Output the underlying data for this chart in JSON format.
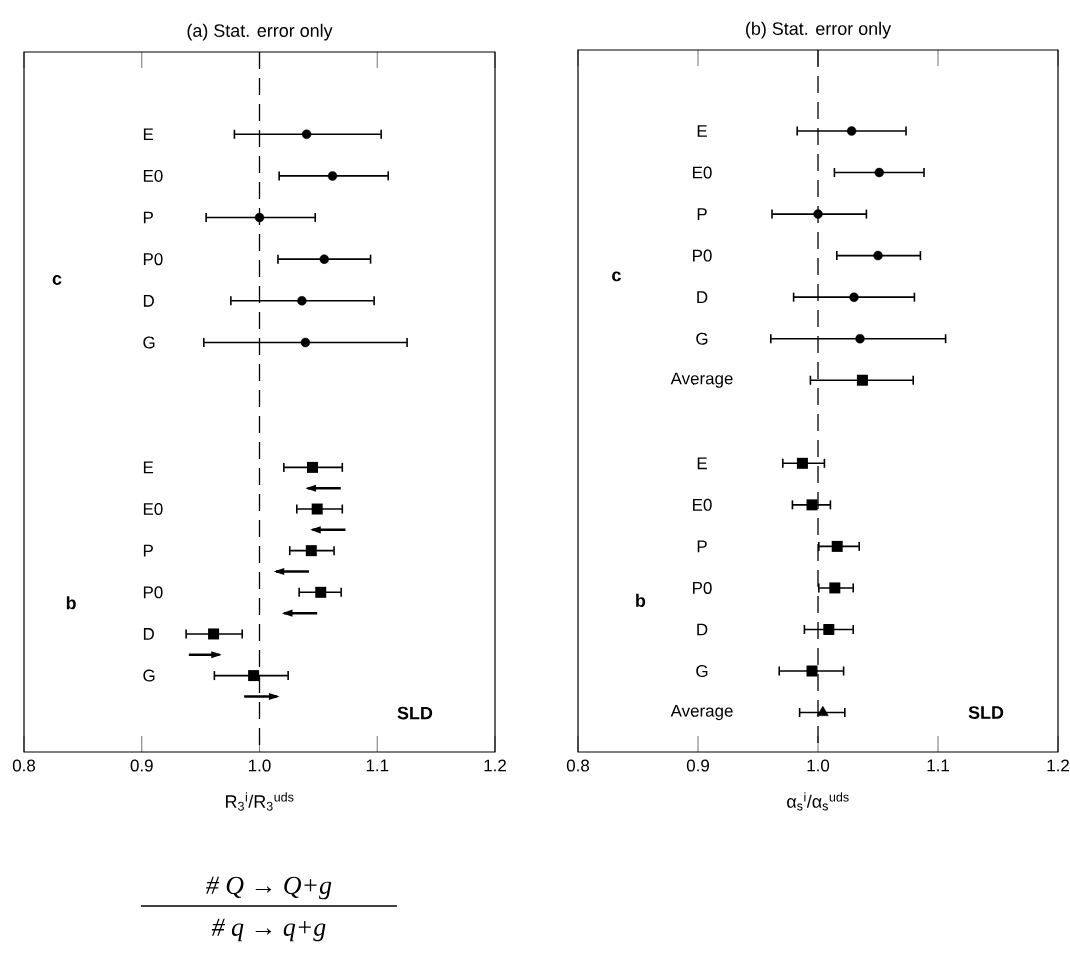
{
  "chart_data": [
    {
      "type": "scatter",
      "orientation": "horizontal",
      "title": "(a)   Stat. error only",
      "xlabel": "R$_{3}$$^{i}$/R$_{3}$$^{uds}$",
      "categories": [
        "E",
        null,
        "E0",
        null,
        "P",
        null,
        "P0",
        null,
        "D",
        null,
        "G",
        null,
        null,
        null,
        null,
        null,
        "E",
        null,
        "E0",
        null,
        "P",
        null,
        "P0",
        null,
        "D",
        null,
        "G",
        null
      ],
      "series": [
        {
          "marker": "circle",
          "color": "#000000",
          "values": [
            1.04,
            null,
            1.062,
            null,
            1.0,
            null,
            1.055,
            null,
            1.036,
            null,
            1.039,
            null,
            null,
            null,
            null,
            null,
            null,
            null,
            null,
            null,
            null,
            null,
            null,
            null,
            null,
            null,
            null,
            null
          ],
          "errors": [
            [
              0.978,
              1.104
            ],
            null,
            [
              1.016,
              1.11
            ],
            null,
            [
              0.954,
              1.048
            ],
            null,
            [
              1.015,
              1.095
            ],
            null,
            [
              0.975,
              1.098
            ],
            null,
            [
              0.952,
              1.126
            ],
            null,
            null,
            null,
            null,
            null,
            null,
            null,
            null,
            null,
            null,
            null,
            null,
            null,
            null,
            null,
            null,
            null
          ]
        },
        {
          "marker": "square",
          "color": "#000000",
          "values": [
            null,
            null,
            null,
            null,
            null,
            null,
            null,
            null,
            null,
            null,
            null,
            null,
            null,
            null,
            null,
            null,
            1.045,
            null,
            1.049,
            null,
            1.044,
            null,
            1.052,
            null,
            0.961,
            null,
            0.995,
            null
          ],
          "errors": [
            null,
            null,
            null,
            null,
            null,
            null,
            null,
            null,
            null,
            null,
            null,
            null,
            null,
            null,
            null,
            null,
            [
              1.02,
              1.071
            ],
            null,
            [
              1.031,
              1.071
            ],
            null,
            [
              1.025,
              1.064
            ],
            null,
            [
              1.033,
              1.07
            ],
            null,
            [
              0.937,
              0.986
            ],
            null,
            [
              0.961,
              1.025
            ],
            null
          ]
        },
        {
          "type": "bar",
          "color": "#000000",
          "base": [
            null,
            null,
            null,
            null,
            null,
            null,
            null,
            null,
            null,
            null,
            null,
            null,
            null,
            null,
            null,
            null,
            null,
            1.069,
            null,
            1.073,
            null,
            1.042,
            null,
            1.049,
            null,
            0.94,
            null,
            0.987
          ],
          "values": [
            null,
            null,
            null,
            null,
            null,
            null,
            null,
            null,
            null,
            null,
            null,
            null,
            null,
            null,
            null,
            null,
            null,
            -0.028,
            null,
            -0.028,
            null,
            -0.028,
            null,
            -0.028,
            null,
            0.026,
            null,
            0.028
          ]
        }
      ],
      "xlim": [
        0.8,
        1.2
      ],
      "xticks": [
        0.8,
        0.9,
        {
          "value": 1.0,
          "label": "1.0"
        },
        1.1,
        1.2
      ],
      "ref_lines": [
        {
          "axis": "x",
          "value": 1.0,
          "line_style": "dashed"
        }
      ],
      "annotations": [
        "c",
        "b",
        "SLD",
        "# Q → Q+g",
        "# q → q+g"
      ]
    },
    {
      "type": "scatter",
      "orientation": "horizontal",
      "title": "(b)   Stat. error only",
      "xlabel": "α$_{s}$$^{i}$/α$_{s}$$^{uds}$",
      "categories": [
        "E",
        "E0",
        "P",
        "P0",
        "D",
        "G",
        "Average",
        null,
        "E",
        "E0",
        "P",
        "P0",
        "D",
        "G",
        "Average"
      ],
      "series": [
        {
          "marker": "circle",
          "color": "#000000",
          "values": [
            1.028,
            1.051,
            1.0,
            1.05,
            1.03,
            1.035,
            null,
            null,
            null,
            null,
            null,
            null,
            null,
            null,
            null
          ],
          "errors": [
            [
              0.982,
              1.074
            ],
            [
              1.013,
              1.089
            ],
            [
              0.961,
              1.041
            ],
            [
              1.015,
              1.086
            ],
            [
              0.979,
              1.081
            ],
            [
              0.96,
              1.107
            ],
            null,
            null,
            null,
            null,
            null,
            null,
            null,
            null,
            null
          ]
        },
        {
          "marker": "square",
          "color": "#000000",
          "values": [
            null,
            null,
            null,
            null,
            null,
            null,
            1.037,
            null,
            0.987,
            0.995,
            1.016,
            1.014,
            1.009,
            0.995,
            null
          ],
          "errors": [
            null,
            null,
            null,
            null,
            null,
            null,
            [
              0.993,
              1.08
            ],
            null,
            [
              0.97,
              1.006
            ],
            [
              0.978,
              1.011
            ],
            [
              1.0,
              1.035
            ],
            [
              1.0,
              1.03
            ],
            [
              0.988,
              1.03
            ],
            [
              0.967,
              1.022
            ],
            null
          ]
        },
        {
          "marker": "triangle",
          "color": "#000000",
          "values": [
            null,
            null,
            null,
            null,
            null,
            null,
            null,
            null,
            null,
            null,
            null,
            null,
            null,
            null,
            1.004
          ],
          "errors": [
            null,
            null,
            null,
            null,
            null,
            null,
            null,
            null,
            null,
            null,
            null,
            null,
            null,
            null,
            [
              0.984,
              1.023
            ]
          ]
        }
      ],
      "xlim": [
        0.8,
        1.2
      ],
      "xticks": [
        0.8,
        0.9,
        {
          "value": 1.0,
          "label": "1.0"
        },
        1.1,
        1.2
      ],
      "ref_lines": [
        {
          "axis": "x",
          "value": 1.0,
          "line_style": "dashed"
        }
      ],
      "annotations": [
        "c",
        "b",
        "SLD"
      ]
    }
  ]
}
